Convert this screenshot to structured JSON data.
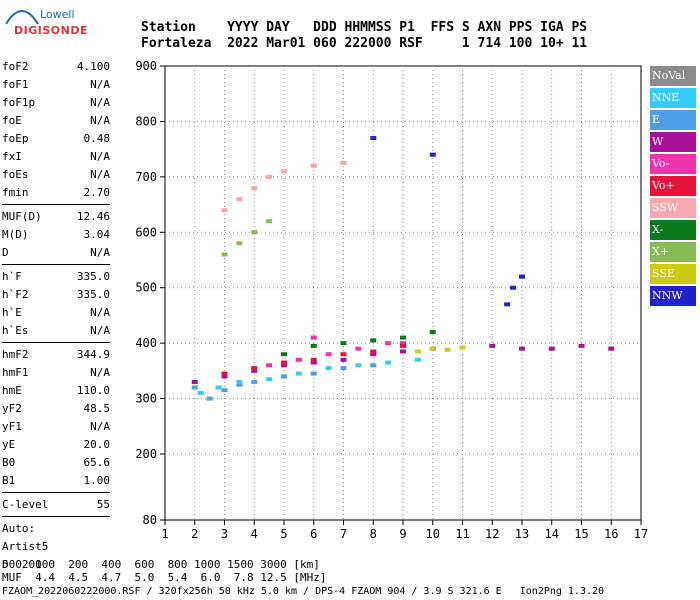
{
  "logo": {
    "line1": "Lowell",
    "line2": "DIGISONDE"
  },
  "header": {
    "line1": "Station    YYYY DAY   DDD HHMMSS P1  FFS S AXN PPS IGA PS",
    "line2": "Fortaleza  2022 Mar01 060 222000 RSF     1 714 100 10+ 11"
  },
  "params": [
    {
      "name": "foF2",
      "value": "4.100"
    },
    {
      "name": "foF1",
      "value": "N/A"
    },
    {
      "name": "foF1p",
      "value": "N/A"
    },
    {
      "name": "foE",
      "value": "N/A"
    },
    {
      "name": "foEp",
      "value": "0.48"
    },
    {
      "name": "fxI",
      "value": "N/A"
    },
    {
      "name": "foEs",
      "value": "N/A"
    },
    {
      "name": "fmin",
      "value": "2.70"
    },
    {
      "sep": true
    },
    {
      "name": "MUF(D)",
      "value": "12.46"
    },
    {
      "name": "M(D)",
      "value": "3.04"
    },
    {
      "name": "D",
      "value": "N/A"
    },
    {
      "sep": true
    },
    {
      "name": "h`F",
      "value": "335.0"
    },
    {
      "name": "h`F2",
      "value": "335.0"
    },
    {
      "name": "h`E",
      "value": "N/A"
    },
    {
      "name": "h`Es",
      "value": "N/A"
    },
    {
      "sep": true
    },
    {
      "name": "hmF2",
      "value": "344.9"
    },
    {
      "name": "hmF1",
      "value": "N/A"
    },
    {
      "name": "hmE",
      "value": "110.0"
    },
    {
      "name": "yF2",
      "value": "48.5"
    },
    {
      "name": "yF1",
      "value": "N/A"
    },
    {
      "name": "yE",
      "value": "20.0"
    },
    {
      "name": "B0",
      "value": "65.6"
    },
    {
      "name": "B1",
      "value": "1.00"
    },
    {
      "sep": true
    },
    {
      "name": "C-level",
      "value": "55"
    },
    {
      "sep": true
    },
    {
      "name": "Auto:",
      "value": ""
    },
    {
      "name": "Artist5",
      "value": ""
    },
    {
      "name": "500200",
      "value": ""
    }
  ],
  "legend": [
    {
      "label": "NoVal",
      "color": "#8c8c8c"
    },
    {
      "label": "NNE",
      "color": "#33ccff"
    },
    {
      "label": "E",
      "color": "#4d9ee6"
    },
    {
      "label": "W",
      "color": "#aa1199"
    },
    {
      "label": "Vo-",
      "color": "#ee33aa"
    },
    {
      "label": "Vo+",
      "color": "#e6143c"
    },
    {
      "label": "SSW",
      "color": "#f4a8b0"
    },
    {
      "label": "X-",
      "color": "#0a7a1a"
    },
    {
      "label": "X+",
      "color": "#88bb55"
    },
    {
      "label": "SSE",
      "color": "#cccc11"
    },
    {
      "label": "NNW",
      "color": "#2222cc"
    }
  ],
  "footer": {
    "line1": "D    100  200  400  600  800 1000 1500 3000 [km]",
    "line2": "MUF  4.4  4.5  4.7  5.0  5.4  6.0  7.8 12.5 [MHz]",
    "line3": "FZAOM_2022060222000.RSF / 320fx256h 50 kHz 5.0 km / DPS-4 FZAOM 904 / 3.9 S 321.6 E   Ion2Png 1.3.20"
  },
  "chart_data": {
    "type": "scatter",
    "x_ticks": [
      "1",
      "2",
      "3",
      "4",
      "5",
      "6",
      "7",
      "8",
      "9",
      "10",
      "11",
      "12",
      "13",
      "14",
      "15",
      "16",
      "17"
    ],
    "y_ticks": [
      "80",
      "200",
      "300",
      "400",
      "500",
      "600",
      "700",
      "800",
      "900"
    ],
    "xlim": [
      1,
      17
    ],
    "ylim": [
      80,
      900
    ],
    "grid": "dotted",
    "series": [
      {
        "name": "E",
        "points": [
          [
            2.0,
            320
          ],
          [
            2.5,
            300
          ],
          [
            3.0,
            315
          ],
          [
            3.5,
            325
          ],
          [
            4.0,
            330
          ],
          [
            5.0,
            340
          ],
          [
            6.0,
            345
          ],
          [
            7.0,
            355
          ],
          [
            8.0,
            360
          ]
        ]
      },
      {
        "name": "NNE",
        "points": [
          [
            2.2,
            310
          ],
          [
            2.8,
            320
          ],
          [
            3.5,
            330
          ],
          [
            4.5,
            335
          ],
          [
            5.5,
            345
          ],
          [
            6.5,
            355
          ],
          [
            7.5,
            360
          ],
          [
            8.5,
            365
          ],
          [
            9.5,
            370
          ]
        ]
      },
      {
        "name": "W",
        "points": [
          [
            2.0,
            330
          ],
          [
            3.0,
            340
          ],
          [
            4.0,
            350
          ],
          [
            5.0,
            360
          ],
          [
            6.0,
            365
          ],
          [
            7.0,
            370
          ],
          [
            8.0,
            380
          ],
          [
            9.0,
            385
          ],
          [
            10.0,
            390
          ],
          [
            12.0,
            395
          ],
          [
            13.0,
            390
          ],
          [
            14.0,
            390
          ],
          [
            15.0,
            395
          ],
          [
            16.0,
            390
          ]
        ]
      },
      {
        "name": "Vo-",
        "points": [
          [
            4.5,
            360
          ],
          [
            5.5,
            370
          ],
          [
            6.5,
            380
          ],
          [
            7.5,
            390
          ],
          [
            8.5,
            400
          ],
          [
            6.0,
            410
          ],
          [
            9.0,
            400
          ]
        ]
      },
      {
        "name": "Vo+",
        "points": [
          [
            3.0,
            345
          ],
          [
            4.0,
            355
          ],
          [
            5.0,
            365
          ],
          [
            6.0,
            370
          ],
          [
            7.0,
            380
          ],
          [
            8.0,
            385
          ],
          [
            9.0,
            395
          ]
        ]
      },
      {
        "name": "X-",
        "points": [
          [
            5.0,
            380
          ],
          [
            6.0,
            395
          ],
          [
            7.0,
            400
          ],
          [
            8.0,
            405
          ],
          [
            9.0,
            410
          ],
          [
            10.0,
            420
          ]
        ]
      },
      {
        "name": "SSE",
        "points": [
          [
            9.5,
            385
          ],
          [
            10.0,
            390
          ],
          [
            10.5,
            388
          ],
          [
            11.0,
            392
          ]
        ]
      },
      {
        "name": "SSW",
        "points": [
          [
            3.0,
            640
          ],
          [
            3.5,
            660
          ],
          [
            4.0,
            680
          ],
          [
            4.5,
            700
          ],
          [
            5.0,
            710
          ],
          [
            6.0,
            720
          ],
          [
            7.0,
            725
          ]
        ]
      },
      {
        "name": "X+",
        "points": [
          [
            3.0,
            560
          ],
          [
            3.5,
            580
          ],
          [
            4.0,
            600
          ],
          [
            4.5,
            620
          ]
        ]
      },
      {
        "name": "NNW",
        "points": [
          [
            8.0,
            770
          ],
          [
            10.0,
            740
          ],
          [
            12.5,
            470
          ],
          [
            12.7,
            500
          ],
          [
            13.0,
            520
          ]
        ]
      }
    ]
  }
}
